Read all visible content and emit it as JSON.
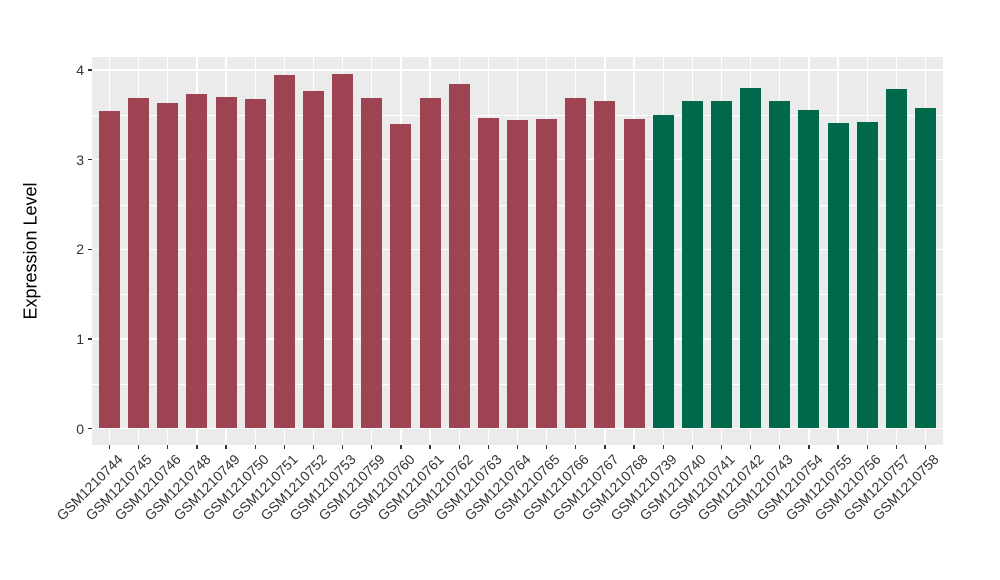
{
  "chart_data": {
    "type": "bar",
    "title": "",
    "ylabel": "Expression Level",
    "xlabel": "",
    "ylim": [
      0,
      4.15
    ],
    "yticks": [
      "0",
      "1",
      "2",
      "3",
      "4"
    ],
    "ytick_values": [
      0,
      1,
      2,
      3,
      4
    ],
    "yminor_values": [
      0.5,
      1.5,
      2.5,
      3.5
    ],
    "grid": "on",
    "legend": "none",
    "series": [
      {
        "name": "group-red",
        "color": "#9E4352",
        "categories": [
          "GSM1210744",
          "GSM1210745",
          "GSM1210746",
          "GSM1210748",
          "GSM1210749",
          "GSM1210750",
          "GSM1210751",
          "GSM1210752",
          "GSM1210753",
          "GSM1210759",
          "GSM1210760",
          "GSM1210761",
          "GSM1210762",
          "GSM1210763",
          "GSM1210764",
          "GSM1210765",
          "GSM1210766",
          "GSM1210767",
          "GSM1210768"
        ],
        "values": [
          3.54,
          3.69,
          3.63,
          3.73,
          3.7,
          3.68,
          3.95,
          3.77,
          3.96,
          3.69,
          3.4,
          3.69,
          3.84,
          3.47,
          3.44,
          3.45,
          3.69,
          3.65,
          3.45
        ]
      },
      {
        "name": "group-green",
        "color": "#00694B",
        "categories": [
          "GSM1210739",
          "GSM1210740",
          "GSM1210741",
          "GSM1210742",
          "GSM1210743",
          "GSM1210754",
          "GSM1210755",
          "GSM1210756",
          "GSM1210757",
          "GSM1210758"
        ],
        "values": [
          3.5,
          3.65,
          3.66,
          3.8,
          3.65,
          3.56,
          3.41,
          3.42,
          3.79,
          3.58
        ]
      }
    ]
  },
  "colors": {
    "figure_bg": "#FFFFFF",
    "panel_bg": "#EBEBEB",
    "grid": "#FFFFFF",
    "tick": "#333333",
    "tick_label": "#333333",
    "axis_title": "#000000"
  }
}
